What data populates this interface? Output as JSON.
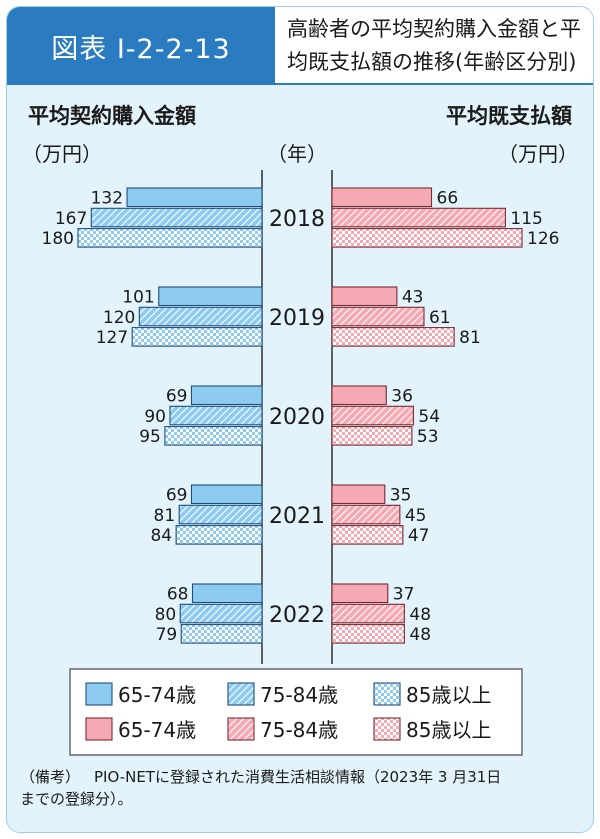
{
  "figure": {
    "label": "図表 I-2-2-13",
    "title_line1": "高齢者の平均契約購入金額と平",
    "title_line2": "均既支払額の推移(年齢区分別)"
  },
  "chart_data": {
    "type": "bar",
    "orientation": "horizontal-butterfly",
    "categories": [
      "2018",
      "2019",
      "2020",
      "2021",
      "2022"
    ],
    "category_axis_label": "（年）",
    "left_panel": {
      "title": "平均契約購入金額",
      "unit": "（万円）",
      "series": [
        {
          "name": "65-74歳",
          "pattern": "solid",
          "values": [
            132,
            101,
            69,
            69,
            68
          ]
        },
        {
          "name": "75-84歳",
          "pattern": "diagonal",
          "values": [
            167,
            120,
            90,
            81,
            80
          ]
        },
        {
          "name": "85歳以上",
          "pattern": "checker",
          "values": [
            180,
            127,
            95,
            84,
            79
          ]
        }
      ],
      "xlim": [
        0,
        180
      ],
      "color": "#8ecbf0",
      "stroke": "#1e4f7a"
    },
    "right_panel": {
      "title": "平均既支払額",
      "unit": "（万円）",
      "series": [
        {
          "name": "65-74歳",
          "pattern": "solid",
          "values": [
            66,
            43,
            36,
            35,
            37
          ]
        },
        {
          "name": "75-84歳",
          "pattern": "diagonal",
          "values": [
            115,
            61,
            54,
            45,
            48
          ]
        },
        {
          "name": "85歳以上",
          "pattern": "checker",
          "values": [
            126,
            81,
            53,
            47,
            48
          ]
        }
      ],
      "xlim": [
        0,
        126
      ],
      "color": "#f5a9b2",
      "stroke": "#7a2a33"
    },
    "legend_placement": "bottom"
  },
  "note": {
    "lead": "（備考）",
    "text_line1": "PIO-NETに登録された消費生活相談情報（2023年 3 月31日",
    "text_line2": "までの登録分）。"
  }
}
